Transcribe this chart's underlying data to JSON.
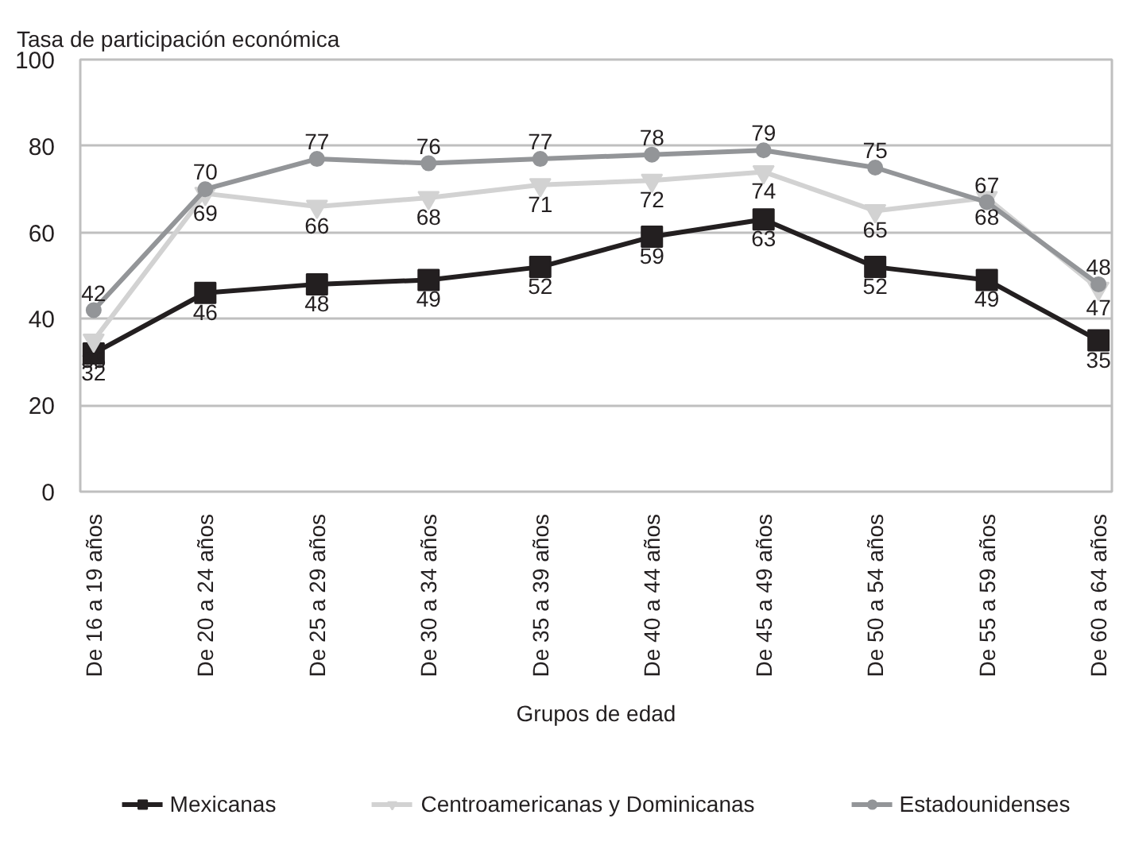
{
  "chart_data": {
    "type": "line",
    "ylabel": "Tasa de participación económica",
    "xlabel": "Grupos de edad",
    "categories": [
      "De 16 a 19 años",
      "De 20 a 24 años",
      "De 25 a 29 años",
      "De 30 a 34 años",
      "De 35 a 39 años",
      "De 40 a 44 años",
      "De 45 a 49 años",
      "De 50 a 54 años",
      "De 55 a 59 años",
      "De 60 a 64 años"
    ],
    "series": [
      {
        "name": "Mexicanas",
        "color": "#231f20",
        "marker": "square",
        "values": [
          32,
          46,
          48,
          49,
          52,
          59,
          63,
          52,
          49,
          35
        ]
      },
      {
        "name": "Centroamericanas y Dominicanas",
        "color": "#d2d2d2",
        "marker": "triangle",
        "values": [
          35,
          69,
          66,
          68,
          71,
          72,
          74,
          65,
          68,
          47
        ]
      },
      {
        "name": "Estadounidenses",
        "color": "#939598",
        "marker": "circle",
        "values": [
          42,
          70,
          77,
          76,
          77,
          78,
          79,
          75,
          67,
          48
        ]
      }
    ],
    "ylim": [
      0,
      100
    ],
    "yticks": [
      0,
      20,
      40,
      60,
      80,
      100
    ],
    "grid": "y",
    "legend": "bottom",
    "data_labels": true
  }
}
